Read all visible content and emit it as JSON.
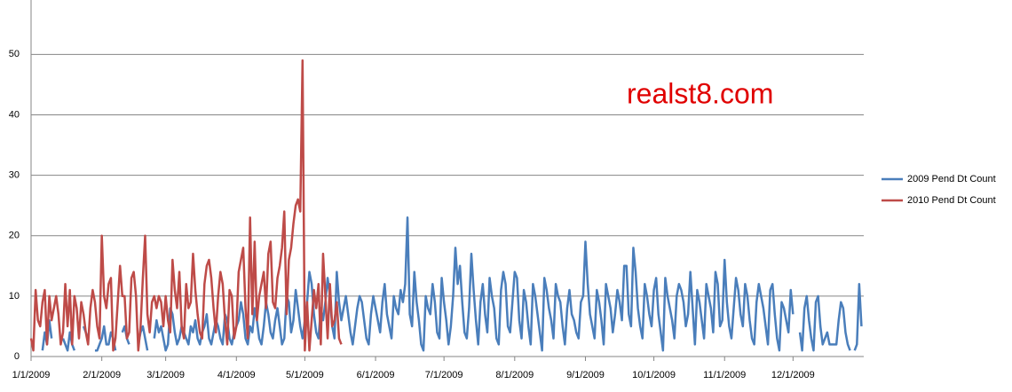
{
  "chart_data": {
    "type": "line",
    "annotation": "realst8.com",
    "annotation_color": "#e00000",
    "categories": [
      "1/1/2009",
      null,
      null,
      null,
      null,
      null,
      null,
      null,
      null,
      null,
      null,
      null,
      null,
      null,
      null,
      null,
      null,
      null,
      null,
      null,
      null,
      null,
      null,
      null,
      null,
      null,
      null,
      null,
      null,
      null,
      null,
      "2/1/2009",
      null,
      null,
      null,
      null,
      null,
      null,
      null,
      null,
      null,
      null,
      null,
      null,
      null,
      null,
      null,
      null,
      null,
      null,
      null,
      null,
      null,
      null,
      null,
      null,
      null,
      null,
      null,
      "3/1/2009",
      null,
      null,
      null,
      null,
      null,
      null,
      null,
      null,
      null,
      null,
      null,
      null,
      null,
      null,
      null,
      null,
      null,
      null,
      null,
      null,
      null,
      null,
      null,
      null,
      null,
      null,
      null,
      null,
      null,
      null,
      "4/1/2009",
      null,
      null,
      null,
      null,
      null,
      null,
      null,
      null,
      null,
      null,
      null,
      null,
      null,
      null,
      null,
      null,
      null,
      null,
      null,
      null,
      null,
      null,
      null,
      null,
      null,
      null,
      null,
      null,
      null,
      "5/1/2009",
      null,
      null,
      null,
      null,
      null,
      null,
      null,
      null,
      null,
      null,
      null,
      null,
      null,
      null,
      null,
      null,
      null,
      null,
      null,
      null,
      null,
      null,
      null,
      null,
      null,
      null,
      null,
      null,
      null,
      null,
      "6/1/2009",
      null,
      null,
      null,
      null,
      null,
      null,
      null,
      null,
      null,
      null,
      null,
      null,
      null,
      null,
      null,
      null,
      null,
      null,
      null,
      null,
      null,
      null,
      null,
      null,
      null,
      null,
      null,
      null,
      null,
      "7/1/2009",
      null,
      null,
      null,
      null,
      null,
      null,
      null,
      null,
      null,
      null,
      null,
      null,
      null,
      null,
      null,
      null,
      null,
      null,
      null,
      null,
      null,
      null,
      null,
      null,
      null,
      null,
      null,
      null,
      null,
      null,
      "8/1/2009",
      null,
      null,
      null,
      null,
      null,
      null,
      null,
      null,
      null,
      null,
      null,
      null,
      null,
      null,
      null,
      null,
      null,
      null,
      null,
      null,
      null,
      null,
      null,
      null,
      null,
      null,
      null,
      null,
      null,
      null,
      "9/1/2009",
      null,
      null,
      null,
      null,
      null,
      null,
      null,
      null,
      null,
      null,
      null,
      null,
      null,
      null,
      null,
      null,
      null,
      null,
      null,
      null,
      null,
      null,
      null,
      null,
      null,
      null,
      null,
      null,
      null,
      "10/1/2009",
      null,
      null,
      null,
      null,
      null,
      null,
      null,
      null,
      null,
      null,
      null,
      null,
      null,
      null,
      null,
      null,
      null,
      null,
      null,
      null,
      null,
      null,
      null,
      null,
      null,
      null,
      null,
      null,
      null,
      null,
      "11/1/2009",
      null,
      null,
      null,
      null,
      null,
      null,
      null,
      null,
      null,
      null,
      null,
      null,
      null,
      null,
      null,
      null,
      null,
      null,
      null,
      null,
      null,
      null,
      null,
      null,
      null,
      null,
      null,
      null,
      null,
      "12/1/2009",
      null,
      null,
      null,
      null,
      null,
      null,
      null,
      null,
      null,
      null,
      null,
      null,
      null,
      null,
      null,
      null,
      null,
      null,
      null,
      null,
      null,
      null,
      null,
      null,
      null,
      null,
      null,
      null,
      null,
      null
    ],
    "series": [
      {
        "name": "2009 Pend Dt Count",
        "color": "#4a7ebb",
        "values": [
          null,
          null,
          null,
          null,
          null,
          1,
          4,
          2,
          6,
          3,
          null,
          null,
          null,
          null,
          3,
          2,
          1,
          4,
          2,
          1,
          null,
          null,
          null,
          5,
          4,
          3,
          null,
          null,
          1,
          1,
          2,
          3,
          5,
          2,
          2,
          4,
          3,
          1,
          null,
          null,
          4,
          5,
          3,
          2,
          null,
          null,
          null,
          2,
          4,
          5,
          3,
          1,
          null,
          null,
          3,
          6,
          4,
          5,
          3,
          1,
          2,
          8,
          7,
          4,
          2,
          3,
          5,
          4,
          3,
          2,
          5,
          4,
          6,
          3,
          2,
          4,
          5,
          7,
          3,
          2,
          4,
          6,
          5,
          3,
          2,
          7,
          6,
          3,
          2,
          4,
          5,
          6,
          9,
          7,
          3,
          2,
          5,
          4,
          8,
          6,
          3,
          2,
          5,
          9,
          7,
          4,
          3,
          6,
          8,
          5,
          2,
          3,
          10,
          9,
          4,
          6,
          11,
          8,
          5,
          3,
          6,
          9,
          14,
          12,
          7,
          4,
          3,
          8,
          6,
          9,
          13,
          10,
          5,
          3,
          14,
          9,
          6,
          8,
          10,
          7,
          4,
          2,
          5,
          8,
          10,
          9,
          6,
          3,
          2,
          7,
          10,
          8,
          6,
          4,
          9,
          12,
          7,
          5,
          3,
          10,
          8,
          7,
          11,
          9,
          12,
          23,
          7,
          5,
          14,
          9,
          6,
          2,
          1,
          10,
          8,
          7,
          12,
          9,
          4,
          3,
          13,
          9,
          6,
          2,
          5,
          10,
          18,
          12,
          15,
          9,
          4,
          3,
          8,
          17,
          11,
          6,
          2,
          9,
          12,
          7,
          4,
          13,
          10,
          8,
          3,
          2,
          11,
          14,
          12,
          5,
          4,
          9,
          14,
          13,
          6,
          3,
          11,
          9,
          5,
          2,
          12,
          10,
          7,
          4,
          1,
          13,
          11,
          8,
          6,
          3,
          12,
          10,
          9,
          5,
          2,
          8,
          11,
          7,
          6,
          4,
          3,
          9,
          10,
          19,
          12,
          7,
          5,
          3,
          11,
          9,
          6,
          2,
          12,
          10,
          8,
          4,
          7,
          11,
          9,
          6,
          15,
          15,
          7,
          5,
          18,
          14,
          8,
          5,
          3,
          12,
          10,
          7,
          5,
          11,
          13,
          7,
          4,
          1,
          13,
          10,
          8,
          6,
          3,
          10,
          12,
          11,
          9,
          5,
          7,
          14,
          8,
          2,
          11,
          9,
          6,
          3,
          12,
          10,
          8,
          4,
          14,
          12,
          5,
          6,
          16,
          9,
          5,
          3,
          8,
          13,
          11,
          7,
          5,
          12,
          10,
          6,
          3,
          2,
          9,
          12,
          10,
          8,
          5,
          2,
          11,
          12,
          7,
          3,
          1,
          9,
          8,
          6,
          4,
          11,
          7,
          null,
          null,
          4,
          1,
          8,
          10,
          6,
          3,
          1,
          9,
          10,
          5,
          2,
          3,
          4,
          2,
          2,
          2,
          2,
          6,
          9,
          8,
          4,
          2,
          1,
          null,
          1,
          2,
          12,
          5
        ]
      },
      {
        "name": "2010 Pend Dt Count",
        "color": "#be4b48",
        "values": [
          3,
          1,
          11,
          6,
          5,
          9,
          11,
          2,
          10,
          6,
          8,
          10,
          7,
          2,
          4,
          12,
          5,
          11,
          2,
          10,
          8,
          3,
          9,
          7,
          4,
          2,
          8,
          11,
          9,
          5,
          3,
          20,
          10,
          8,
          12,
          13,
          1,
          3,
          9,
          15,
          10,
          10,
          3,
          4,
          13,
          14,
          10,
          1,
          5,
          13,
          20,
          7,
          4,
          9,
          10,
          8,
          10,
          9,
          5,
          10,
          6,
          4,
          16,
          11,
          8,
          14,
          5,
          3,
          12,
          8,
          9,
          17,
          11,
          7,
          4,
          3,
          12,
          15,
          16,
          13,
          8,
          4,
          10,
          14,
          12,
          6,
          2,
          11,
          10,
          3,
          5,
          14,
          16,
          18,
          8,
          3,
          23,
          7,
          19,
          6,
          10,
          12,
          14,
          8,
          17,
          19,
          9,
          8,
          13,
          15,
          18,
          24,
          7,
          16,
          18,
          22,
          25,
          26,
          24,
          49,
          1,
          9,
          1,
          6,
          11,
          8,
          12,
          2,
          17,
          10,
          3,
          12,
          5,
          6,
          9,
          3,
          2,
          null,
          null,
          null,
          null,
          null,
          null,
          null,
          null,
          null,
          null,
          null,
          null,
          null,
          null,
          null,
          null,
          null,
          null,
          null,
          null,
          null,
          null,
          null,
          null,
          null,
          null,
          null,
          null,
          null,
          null,
          null,
          null,
          null,
          null,
          null,
          null,
          null,
          null,
          null,
          null,
          null,
          null,
          null,
          null,
          null,
          null,
          null,
          null,
          null,
          null,
          null,
          null,
          null,
          null,
          null,
          null,
          null,
          null,
          null,
          null,
          null,
          null,
          null,
          null,
          null,
          null,
          null,
          null,
          null,
          null,
          null,
          null,
          null,
          null,
          null,
          null,
          null,
          null,
          null,
          null,
          null,
          null,
          null,
          null,
          null,
          null,
          null,
          null,
          null,
          null,
          null,
          null,
          null,
          null,
          null,
          null,
          null,
          null,
          null,
          null,
          null,
          null,
          null,
          null,
          null,
          null,
          null,
          null,
          null,
          null,
          null,
          null,
          null,
          null,
          null,
          null,
          null,
          null,
          null,
          null,
          null,
          null,
          null,
          null,
          null,
          null,
          null,
          null,
          null,
          null,
          null,
          null,
          null,
          null,
          null,
          null,
          null,
          null,
          null,
          null,
          null,
          null,
          null,
          null,
          null,
          null,
          null,
          null,
          null,
          null,
          null,
          null,
          null,
          null,
          null,
          null,
          null,
          null,
          null,
          null,
          null,
          null,
          null,
          null,
          null,
          null,
          null,
          null,
          null,
          null,
          null,
          null,
          null,
          null,
          null,
          null,
          null,
          null,
          null,
          null,
          null,
          null,
          null,
          null,
          null,
          null,
          null,
          null,
          null,
          null,
          null,
          null,
          null,
          null,
          null,
          null,
          null,
          null,
          null,
          null,
          null,
          null,
          null,
          null,
          null,
          null,
          null,
          null,
          null,
          null,
          null,
          null,
          null,
          null,
          null,
          null,
          null,
          null,
          null,
          null,
          null,
          null,
          null,
          null,
          null,
          null,
          null,
          null
        ]
      }
    ],
    "ylim": [
      0,
      59
    ],
    "yticks": [
      0,
      10,
      20,
      30,
      40,
      50
    ],
    "grid": true,
    "legend": "right"
  }
}
